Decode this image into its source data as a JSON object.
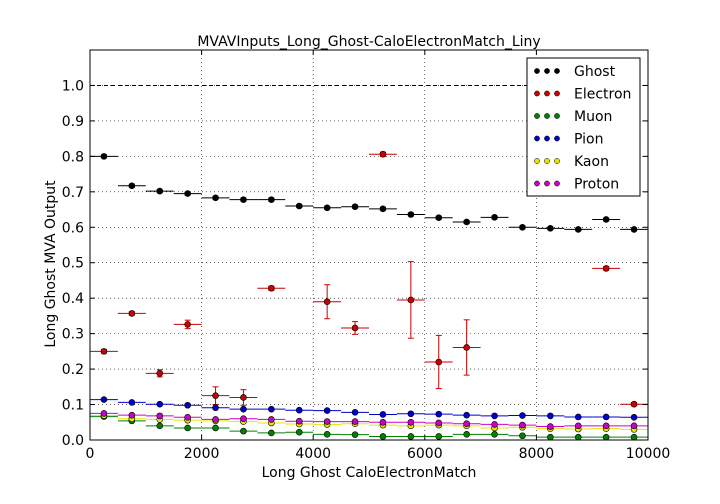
{
  "chart_data": {
    "type": "scatter",
    "title": "MVAVInputs_Long_Ghost-CaloElectronMatch_Liny",
    "xlabel": "Long Ghost CaloElectronMatch",
    "ylabel": "Long Ghost MVA Output",
    "xlim": [
      0,
      10000
    ],
    "ylim": [
      0.0,
      1.1
    ],
    "x_ticks": [
      "0",
      "2000",
      "4000",
      "6000",
      "8000",
      "10000"
    ],
    "y_ticks": [
      "0.0",
      "0.1",
      "0.2",
      "0.3",
      "0.4",
      "0.5",
      "0.6",
      "0.7",
      "0.8",
      "0.9",
      "1.0"
    ],
    "grid": true,
    "reference_line": 1.0,
    "bin_width": 500,
    "legend_position": "top-right",
    "series": [
      {
        "name": "Ghost",
        "color": "#000000",
        "x": [
          250,
          750,
          1250,
          1750,
          2250,
          2750,
          3250,
          3750,
          4250,
          4750,
          5250,
          5750,
          6250,
          6750,
          7250,
          7750,
          8250,
          8750,
          9250,
          9750
        ],
        "y": [
          0.8,
          0.717,
          0.702,
          0.695,
          0.683,
          0.678,
          0.678,
          0.66,
          0.655,
          0.658,
          0.652,
          0.636,
          0.627,
          0.615,
          0.628,
          0.6,
          0.597,
          0.594,
          0.622,
          0.594
        ],
        "yerr": [
          0.004,
          0.004,
          0.004,
          0.004,
          0.004,
          0.004,
          0.004,
          0.004,
          0.004,
          0.004,
          0.004,
          0.004,
          0.004,
          0.004,
          0.004,
          0.004,
          0.004,
          0.004,
          0.004,
          0.004
        ]
      },
      {
        "name": "Electron",
        "color": "#cc0000",
        "x": [
          250,
          750,
          1250,
          1750,
          2250,
          2750,
          3250,
          4250,
          4750,
          5250,
          5750,
          6250,
          6750,
          9250,
          9750
        ],
        "y": [
          0.25,
          0.357,
          0.188,
          0.326,
          0.125,
          0.12,
          0.428,
          0.39,
          0.316,
          0.806,
          0.395,
          0.22,
          0.261,
          0.484,
          0.101
        ],
        "yerr": [
          0.005,
          0.005,
          0.01,
          0.012,
          0.025,
          0.022,
          0.006,
          0.048,
          0.018,
          0.006,
          0.108,
          0.075,
          0.078,
          0.005,
          0.005
        ]
      },
      {
        "name": "Muon",
        "color": "#008000",
        "x": [
          250,
          750,
          1250,
          1750,
          2250,
          2750,
          3250,
          3750,
          4250,
          4750,
          5250,
          5750,
          6250,
          6750,
          7250,
          7750,
          8250,
          8750,
          9250,
          9750
        ],
        "y": [
          0.066,
          0.054,
          0.04,
          0.034,
          0.034,
          0.025,
          0.02,
          0.022,
          0.016,
          0.015,
          0.01,
          0.01,
          0.01,
          0.016,
          0.016,
          0.012,
          0.008,
          0.008,
          0.008,
          0.008
        ],
        "yerr": [
          0.002,
          0.002,
          0.002,
          0.002,
          0.002,
          0.002,
          0.002,
          0.002,
          0.002,
          0.002,
          0.002,
          0.002,
          0.002,
          0.002,
          0.002,
          0.002,
          0.002,
          0.002,
          0.002,
          0.002
        ]
      },
      {
        "name": "Pion",
        "color": "#0000cc",
        "x": [
          250,
          750,
          1250,
          1750,
          2250,
          2750,
          3250,
          3750,
          4250,
          4750,
          5250,
          5750,
          6250,
          6750,
          7250,
          7750,
          8250,
          8750,
          9250,
          9750
        ],
        "y": [
          0.114,
          0.106,
          0.101,
          0.098,
          0.091,
          0.087,
          0.087,
          0.084,
          0.083,
          0.078,
          0.072,
          0.074,
          0.073,
          0.07,
          0.068,
          0.069,
          0.068,
          0.065,
          0.065,
          0.064
        ],
        "yerr": [
          0.002,
          0.002,
          0.002,
          0.002,
          0.002,
          0.002,
          0.002,
          0.002,
          0.002,
          0.002,
          0.002,
          0.002,
          0.002,
          0.002,
          0.002,
          0.002,
          0.002,
          0.002,
          0.002,
          0.002
        ]
      },
      {
        "name": "Kaon",
        "color": "#e6e600",
        "x": [
          250,
          750,
          1250,
          1750,
          2250,
          2750,
          3250,
          3750,
          4250,
          4750,
          5250,
          5750,
          6250,
          6750,
          7250,
          7750,
          8250,
          8750,
          9250,
          9750
        ],
        "y": [
          0.069,
          0.06,
          0.058,
          0.056,
          0.054,
          0.052,
          0.048,
          0.045,
          0.044,
          0.046,
          0.042,
          0.04,
          0.042,
          0.04,
          0.034,
          0.036,
          0.032,
          0.031,
          0.032,
          0.03
        ],
        "yerr": [
          0.002,
          0.002,
          0.002,
          0.002,
          0.002,
          0.002,
          0.002,
          0.002,
          0.002,
          0.002,
          0.002,
          0.002,
          0.002,
          0.002,
          0.002,
          0.002,
          0.002,
          0.002,
          0.002,
          0.002
        ]
      },
      {
        "name": "Proton",
        "color": "#cc00cc",
        "x": [
          250,
          750,
          1250,
          1750,
          2250,
          2750,
          3250,
          3750,
          4250,
          4750,
          5250,
          5750,
          6250,
          6750,
          7250,
          7750,
          8250,
          8750,
          9250,
          9750
        ],
        "y": [
          0.075,
          0.07,
          0.068,
          0.064,
          0.058,
          0.06,
          0.058,
          0.053,
          0.052,
          0.052,
          0.05,
          0.05,
          0.048,
          0.046,
          0.044,
          0.042,
          0.038,
          0.04,
          0.04,
          0.04
        ],
        "yerr": [
          0.002,
          0.002,
          0.002,
          0.002,
          0.002,
          0.002,
          0.002,
          0.002,
          0.002,
          0.002,
          0.002,
          0.002,
          0.002,
          0.002,
          0.002,
          0.002,
          0.002,
          0.002,
          0.002,
          0.002
        ]
      }
    ]
  }
}
